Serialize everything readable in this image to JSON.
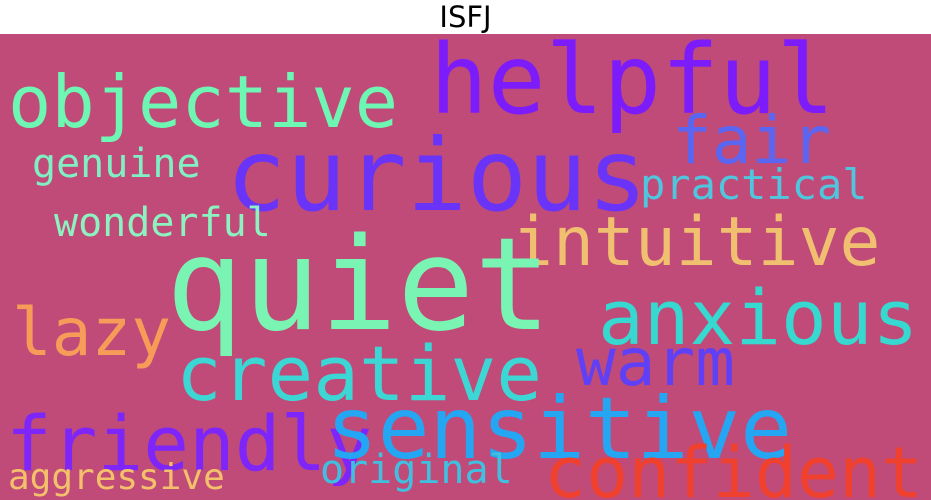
{
  "title": "ISFJ",
  "colors": {
    "background": "#c04b78"
  },
  "words": {
    "objective": "objective",
    "helpful": "helpful",
    "fair": "fair",
    "genuine": "genuine",
    "curious": "curious",
    "practical": "practical",
    "wonderful": "wonderful",
    "intuitive": "intuitive",
    "quiet": "quiet",
    "anxious": "anxious",
    "lazy": "lazy",
    "warm": "warm",
    "creative": "creative",
    "friendly": "friendly",
    "sensitive": "sensitive",
    "aggressive": "aggressive",
    "original": "original",
    "confident": "confident"
  }
}
